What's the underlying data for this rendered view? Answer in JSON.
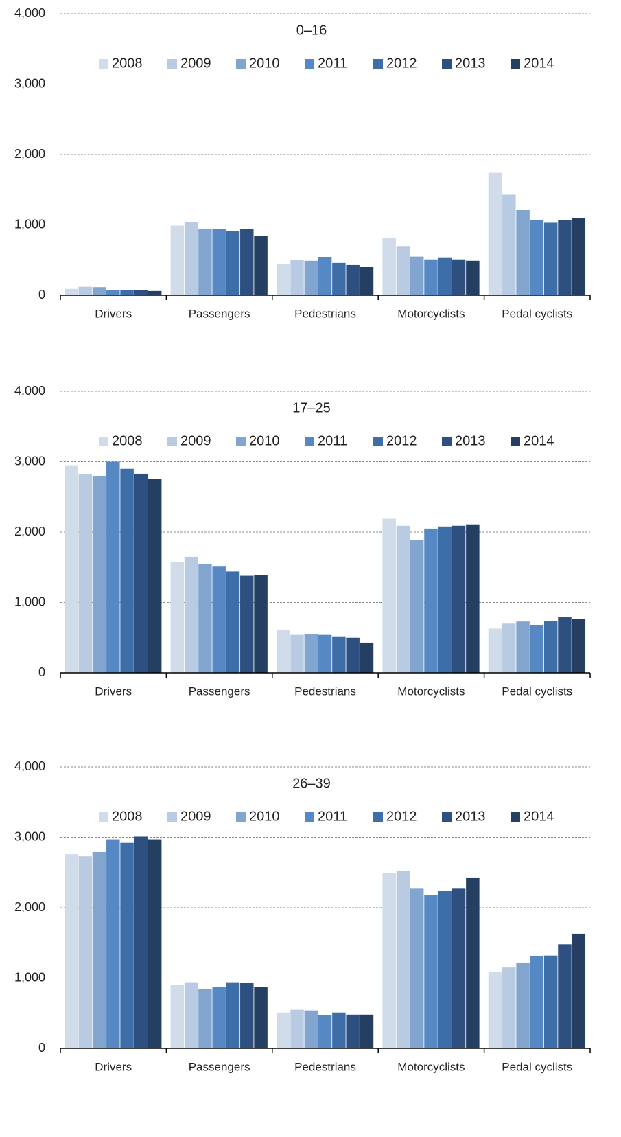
{
  "chart_data": [
    {
      "type": "bar",
      "title": "0–16",
      "categories": [
        "Drivers",
        "Passengers",
        "Pedestrians",
        "Motorcyclists",
        "Pedal cyclists"
      ],
      "series": [
        {
          "name": "2008",
          "color": "#d0dcea",
          "values": [
            90,
            990,
            440,
            810,
            1740
          ]
        },
        {
          "name": "2009",
          "color": "#b8cbe2",
          "values": [
            120,
            1040,
            500,
            690,
            1430
          ]
        },
        {
          "name": "2010",
          "color": "#82a5cf",
          "values": [
            115,
            940,
            490,
            550,
            1210
          ]
        },
        {
          "name": "2011",
          "color": "#5689c4",
          "values": [
            75,
            945,
            540,
            510,
            1070
          ]
        },
        {
          "name": "2012",
          "color": "#3e6ea8",
          "values": [
            70,
            910,
            460,
            530,
            1030
          ]
        },
        {
          "name": "2013",
          "color": "#2e5080",
          "values": [
            75,
            940,
            430,
            510,
            1070
          ]
        },
        {
          "name": "2014",
          "color": "#253f63",
          "values": [
            60,
            840,
            400,
            490,
            1100
          ]
        }
      ],
      "ylim": [
        0,
        4000
      ],
      "yticks": [
        0,
        {
          "value": 1000,
          "label": "1,000"
        },
        {
          "value": 2000,
          "label": "2,000"
        },
        {
          "value": 3000,
          "label": "3,000"
        },
        {
          "value": 4000,
          "label": "4,000"
        }
      ],
      "grid": true,
      "legend": "top"
    },
    {
      "type": "bar",
      "title": "17–25",
      "categories": [
        "Drivers",
        "Passengers",
        "Pedestrians",
        "Motorcyclists",
        "Pedal cyclists"
      ],
      "series": [
        {
          "name": "2008",
          "color": "#d0dcea",
          "values": [
            2950,
            1580,
            610,
            2190,
            630
          ]
        },
        {
          "name": "2009",
          "color": "#b8cbe2",
          "values": [
            2830,
            1650,
            540,
            2090,
            700
          ]
        },
        {
          "name": "2010",
          "color": "#82a5cf",
          "values": [
            2790,
            1550,
            550,
            1890,
            730
          ]
        },
        {
          "name": "2011",
          "color": "#5689c4",
          "values": [
            3000,
            1510,
            540,
            2050,
            680
          ]
        },
        {
          "name": "2012",
          "color": "#3e6ea8",
          "values": [
            2900,
            1440,
            510,
            2080,
            740
          ]
        },
        {
          "name": "2013",
          "color": "#2e5080",
          "values": [
            2830,
            1380,
            500,
            2090,
            790
          ]
        },
        {
          "name": "2014",
          "color": "#253f63",
          "values": [
            2760,
            1390,
            430,
            2110,
            770
          ]
        }
      ],
      "ylim": [
        0,
        4000
      ],
      "yticks": [
        0,
        {
          "value": 1000,
          "label": "1,000"
        },
        {
          "value": 2000,
          "label": "2,000"
        },
        {
          "value": 3000,
          "label": "3,000"
        },
        {
          "value": 4000,
          "label": "4,000"
        }
      ],
      "grid": true,
      "legend": "top"
    },
    {
      "type": "bar",
      "title": "26–39",
      "categories": [
        "Drivers",
        "Passengers",
        "Pedestrians",
        "Motorcyclists",
        "Pedal cyclists"
      ],
      "series": [
        {
          "name": "2008",
          "color": "#d0dcea",
          "values": [
            2760,
            900,
            510,
            2490,
            1090
          ]
        },
        {
          "name": "2009",
          "color": "#b8cbe2",
          "values": [
            2730,
            940,
            550,
            2520,
            1150
          ]
        },
        {
          "name": "2010",
          "color": "#82a5cf",
          "values": [
            2790,
            840,
            540,
            2270,
            1220
          ]
        },
        {
          "name": "2011",
          "color": "#5689c4",
          "values": [
            2970,
            870,
            470,
            2180,
            1310
          ]
        },
        {
          "name": "2012",
          "color": "#3e6ea8",
          "values": [
            2920,
            940,
            510,
            2240,
            1320
          ]
        },
        {
          "name": "2013",
          "color": "#2e5080",
          "values": [
            3010,
            930,
            480,
            2270,
            1480
          ]
        },
        {
          "name": "2014",
          "color": "#253f63",
          "values": [
            2970,
            870,
            480,
            2420,
            1630
          ]
        }
      ],
      "ylim": [
        0,
        4000
      ],
      "yticks": [
        0,
        {
          "value": 1000,
          "label": "1,000"
        },
        {
          "value": 2000,
          "label": "2,000"
        },
        {
          "value": 3000,
          "label": "3,000"
        },
        {
          "value": 4000,
          "label": "4,000"
        }
      ],
      "grid": true,
      "legend": "top"
    }
  ]
}
